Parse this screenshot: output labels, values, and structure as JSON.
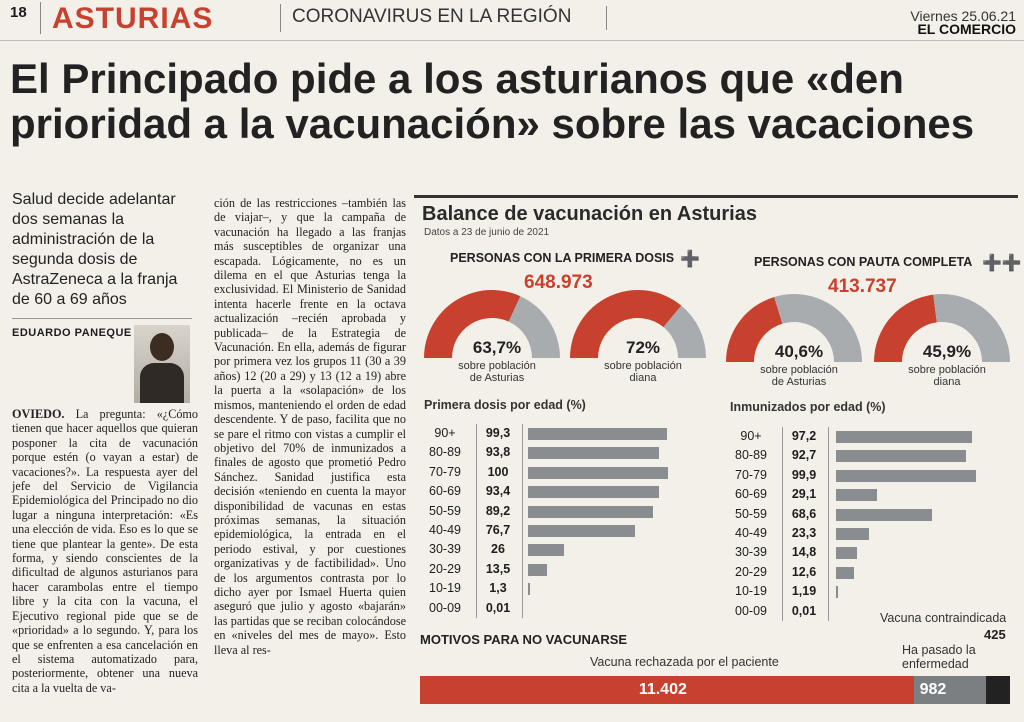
{
  "header": {
    "page": "18",
    "section": "ASTURIAS",
    "kicker": "CORONAVIRUS EN LA REGIÓN",
    "date": "Viernes 25.06.21",
    "newspaper": "EL COMERCIO"
  },
  "headline": "El Principado pide a los asturianos que «den prioridad a la vacunación» sobre las vacaciones",
  "summary": "Salud decide adelantar dos semanas la administración de la segunda dosis de AstraZeneca a la franja de 60 a 69 años",
  "byline": "EDUARDO PANEQUE",
  "body": {
    "col1_place": "OVIEDO.",
    "col1": " La pregunta: «¿Cómo tienen que hacer aquellos que quieran posponer la cita de vacunación porque estén (o vayan a estar) de vacaciones?». La respuesta ayer del jefe del Servicio de Vigilancia Epidemiológica del Principado no dio lugar a ninguna interpretación: «Es una elección de vida. Eso es lo que se tiene que plantear la gente». De esta forma, y siendo conscientes de la dificultad de algunos asturianos para hacer carambolas entre el tiempo libre y la cita con la vacuna, el Ejecutivo regional pide que se de «prioridad» a lo segundo. Y, para los que se enfrenten a esa cancelación en el sistema automatizado para, posteriormente, obtener una nueva cita a la vuelta de va-",
    "col2": "ción de las restricciones –también las de viajar–, y que la campaña de vacunación ha llegado a las franjas más susceptibles de organizar una escapada. Lógicamente, no es un dilema en el que Asturias tenga la exclusividad. El Ministerio de Sanidad intenta hacerle frente en la octava actualización –recién aprobada y publicada– de la Estrategia de Vacunación. En ella, además de figurar por primera vez los grupos 11 (30 a 39 años) 12 (20 a 29) y 13 (12 a 19) abre la puerta a la «solapación» de los mismos, manteniendo el orden de edad descendente. Y de paso, facilita que no se pare el ritmo con vistas a cumplir el objetivo del 70% de inmunizados a finales de agosto que prometió Pedro Sánchez. Sanidad justifica esta decisión «teniendo en cuenta la mayor disponibilidad de vacunas en estas próximas semanas, la situación epidemiológica, la entrada en el periodo estival, y por cuestiones organizativas y de factibilidad». Uno de los argumentos contrasta por lo dicho ayer por Ismael Huerta quien aseguró que julio y agosto «bajarán» las partidas que se reciban colocándose en «niveles del mes de mayo». Esto lleva al res-"
  },
  "graphic": {
    "title": "Balance de vacunación en Asturias",
    "subtitle": "Datos a 23 de junio de 2021",
    "colors": {
      "accent": "#c8412e",
      "gray": "#a9acaf",
      "bar": "#8a8d90",
      "dark": "#222222"
    },
    "first_dose": {
      "label": "PERSONAS CON LA PRIMERA DOSIS",
      "total": "648.973",
      "donuts": [
        {
          "pct": "63,7%",
          "value": 63.7,
          "caption": "sobre población de Asturias"
        },
        {
          "pct": "72%",
          "value": 72,
          "caption": "sobre población diana"
        }
      ]
    },
    "full": {
      "label": "PERSONAS CON PAUTA COMPLETA",
      "total": "413.737",
      "donuts": [
        {
          "pct": "40,6%",
          "value": 40.6,
          "caption": "sobre población de Asturias"
        },
        {
          "pct": "45,9%",
          "value": 45.9,
          "caption": "sobre población diana"
        }
      ]
    },
    "first_by_age": {
      "title": "Primera dosis por edad (%)",
      "rows": [
        {
          "age": "90+",
          "label": "99,3",
          "value": 99.3
        },
        {
          "age": "80-89",
          "label": "93,8",
          "value": 93.8
        },
        {
          "age": "70-79",
          "label": "100",
          "value": 100
        },
        {
          "age": "60-69",
          "label": "93,4",
          "value": 93.4
        },
        {
          "age": "50-59",
          "label": "89,2",
          "value": 89.2
        },
        {
          "age": "40-49",
          "label": "76,7",
          "value": 76.7
        },
        {
          "age": "30-39",
          "label": "26",
          "value": 26
        },
        {
          "age": "20-29",
          "label": "13,5",
          "value": 13.5
        },
        {
          "age": "10-19",
          "label": "1,3",
          "value": 1.3
        },
        {
          "age": "00-09",
          "label": "0,01",
          "value": 0.01
        }
      ]
    },
    "immunized_by_age": {
      "title": "Inmunizados por edad (%)",
      "rows": [
        {
          "age": "90+",
          "label": "97,2",
          "value": 97.2
        },
        {
          "age": "80-89",
          "label": "92,7",
          "value": 92.7
        },
        {
          "age": "70-79",
          "label": "99,9",
          "value": 99.9
        },
        {
          "age": "60-69",
          "label": "29,1",
          "value": 29.1
        },
        {
          "age": "50-59",
          "label": "68,6",
          "value": 68.6
        },
        {
          "age": "40-49",
          "label": "23,3",
          "value": 23.3
        },
        {
          "age": "30-39",
          "label": "14,8",
          "value": 14.8
        },
        {
          "age": "20-29",
          "label": "12,6",
          "value": 12.6
        },
        {
          "age": "10-19",
          "label": "1,19",
          "value": 1.19
        },
        {
          "age": "00-09",
          "label": "0,01",
          "value": 0.01
        }
      ]
    },
    "reasons": {
      "title": "MOTIVOS PARA NO VACUNARSE",
      "rejected_label": "Vacuna rechazada por el paciente",
      "rejected": "11.402",
      "rejected_value": 11402,
      "had_label": "Ha pasado la enfermedad",
      "had": "982",
      "had_value": 982,
      "contra_label": "Vacuna contraindicada",
      "contra": "425",
      "contra_value": 425
    }
  }
}
